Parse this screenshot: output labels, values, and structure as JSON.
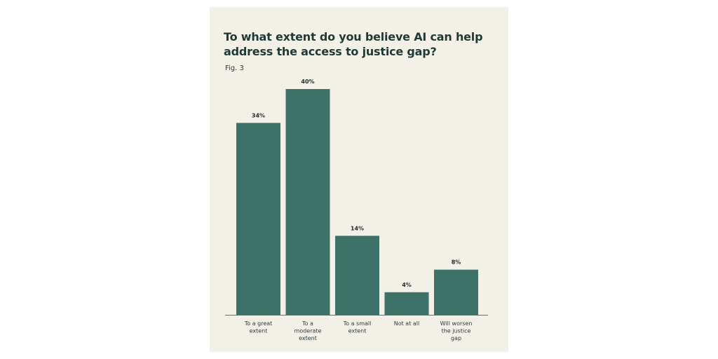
{
  "page": {
    "title": "To what extent do you believe AI can help address the access to justice gap?",
    "figure_label": "Fig. 3",
    "colors": {
      "background": "#f3f0e8",
      "bar": "#3d7269",
      "text": "#1f3a34"
    }
  },
  "chart_data": {
    "type": "bar",
    "title": "To what extent do you believe AI can help address the access to justice gap?",
    "xlabel": "",
    "ylabel": "",
    "categories": [
      [
        "To a great",
        "extent"
      ],
      [
        "To a",
        "moderate",
        "extent"
      ],
      [
        "To a small",
        "extent"
      ],
      [
        "Not at all"
      ],
      [
        "Will worsen",
        "the justice",
        "gap"
      ]
    ],
    "values": [
      34,
      40,
      14,
      4,
      8
    ],
    "value_labels": [
      "34%",
      "40%",
      "14%",
      "4%",
      "8%"
    ],
    "ylim": [
      0,
      40
    ],
    "grid": false,
    "legend": "none"
  }
}
